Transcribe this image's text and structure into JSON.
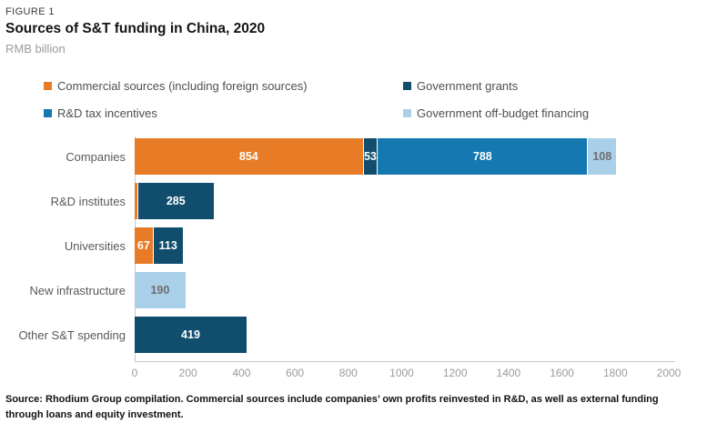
{
  "figure_label": "FIGURE 1",
  "title": "Sources of S&T funding in China, 2020",
  "subtitle": "RMB billion",
  "source_note": "Source: Rhodium Group compilation. Commercial sources include companies’ own profits reinvested in R&D, as well as external funding through loans and equity investment.",
  "colors": {
    "commercial": "#E87C26",
    "grants": "#114E6E",
    "tax_incentives": "#1478B1",
    "off_budget": "#A9CFE9",
    "axis_line": "#C9C9C9",
    "label_on_dark": "#FFFFFF",
    "label_on_light": "#6E6E6E"
  },
  "legend": {
    "items": [
      {
        "label": "Commercial sources (including foreign sources)",
        "color_key": "commercial"
      },
      {
        "label": "Government grants",
        "color_key": "grants"
      },
      {
        "label": "R&D tax incentives",
        "color_key": "tax_incentives"
      },
      {
        "label": "Government off-budget financing",
        "color_key": "off_budget"
      }
    ]
  },
  "chart_data": {
    "type": "bar",
    "orientation": "horizontal",
    "stacked": true,
    "title": "Sources of S&T funding in China, 2020",
    "xlabel": "",
    "ylabel": "RMB billion",
    "grid": false,
    "legend_position": "top",
    "categories": [
      "Companies",
      "R&D institutes",
      "Universities",
      "New infrastructure",
      "Other S&T spending"
    ],
    "series": [
      {
        "name": "Commercial sources (including foreign sources)",
        "color_key": "commercial",
        "values": [
          854,
          10,
          67,
          0,
          0
        ]
      },
      {
        "name": "Government grants",
        "color_key": "grants",
        "values": [
          53,
          285,
          113,
          0,
          419
        ]
      },
      {
        "name": "R&D tax incentives",
        "color_key": "tax_incentives",
        "values": [
          788,
          0,
          0,
          0,
          0
        ]
      },
      {
        "name": "Government off-budget financing",
        "color_key": "off_budget",
        "values": [
          108,
          0,
          0,
          190,
          0
        ]
      }
    ],
    "xlim": [
      0,
      2000
    ],
    "xticks": [
      0,
      200,
      400,
      600,
      800,
      1000,
      1200,
      1400,
      1600,
      1800,
      2000
    ],
    "value_label_min": 20
  }
}
